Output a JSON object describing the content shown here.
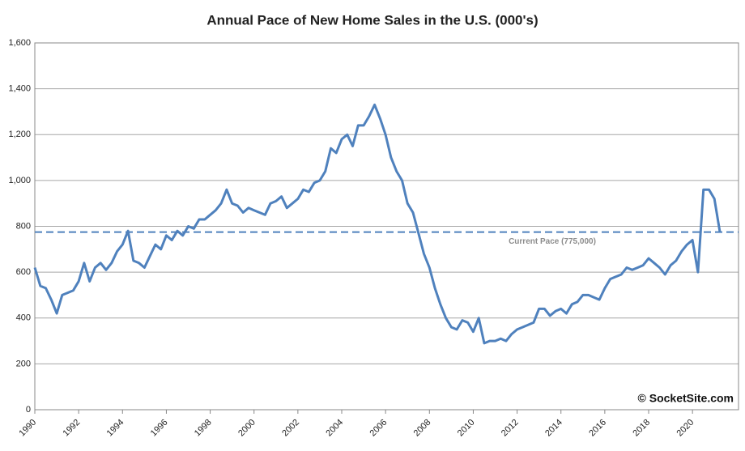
{
  "chart_data": {
    "type": "line",
    "title": "Annual Pace of New Home Sales in the U.S. (000's)",
    "watermark": "© SocketSite.com",
    "x": [
      1990,
      1990.25,
      1990.5,
      1990.75,
      1991,
      1991.25,
      1991.5,
      1991.75,
      1992,
      1992.25,
      1992.5,
      1992.75,
      1993,
      1993.25,
      1993.5,
      1993.75,
      1994,
      1994.25,
      1994.5,
      1994.75,
      1995,
      1995.25,
      1995.5,
      1995.75,
      1996,
      1996.25,
      1996.5,
      1996.75,
      1997,
      1997.25,
      1997.5,
      1997.75,
      1998,
      1998.25,
      1998.5,
      1998.75,
      1999,
      1999.25,
      1999.5,
      1999.75,
      2000,
      2000.25,
      2000.5,
      2000.75,
      2001,
      2001.25,
      2001.5,
      2001.75,
      2002,
      2002.25,
      2002.5,
      2002.75,
      2003,
      2003.25,
      2003.5,
      2003.75,
      2004,
      2004.25,
      2004.5,
      2004.75,
      2005,
      2005.25,
      2005.5,
      2005.75,
      2006,
      2006.25,
      2006.5,
      2006.75,
      2007,
      2007.25,
      2007.5,
      2007.75,
      2008,
      2008.25,
      2008.5,
      2008.75,
      2009,
      2009.25,
      2009.5,
      2009.75,
      2010,
      2010.25,
      2010.5,
      2010.75,
      2011,
      2011.25,
      2011.5,
      2011.75,
      2012,
      2012.25,
      2012.5,
      2012.75,
      2013,
      2013.25,
      2013.5,
      2013.75,
      2014,
      2014.25,
      2014.5,
      2014.75,
      2015,
      2015.25,
      2015.5,
      2015.75,
      2016,
      2016.25,
      2016.5,
      2016.75,
      2017,
      2017.25,
      2017.5,
      2017.75,
      2018,
      2018.25,
      2018.5,
      2018.75,
      2019,
      2019.25,
      2019.5,
      2019.75,
      2020,
      2020.25,
      2020.5,
      2020.75,
      2021,
      2021.25
    ],
    "series": [
      {
        "name": "New Home Sales",
        "color": "#4f81bd",
        "values": [
          620,
          540,
          530,
          480,
          420,
          500,
          510,
          520,
          560,
          640,
          560,
          620,
          640,
          610,
          640,
          690,
          720,
          780,
          650,
          640,
          620,
          670,
          720,
          700,
          760,
          740,
          780,
          760,
          800,
          790,
          830,
          830,
          850,
          870,
          900,
          960,
          900,
          890,
          860,
          880,
          870,
          860,
          850,
          900,
          910,
          930,
          880,
          900,
          920,
          960,
          950,
          990,
          1000,
          1040,
          1140,
          1120,
          1180,
          1200,
          1150,
          1240,
          1240,
          1280,
          1330,
          1270,
          1200,
          1100,
          1040,
          1000,
          900,
          860,
          770,
          680,
          620,
          530,
          460,
          400,
          360,
          350,
          390,
          380,
          340,
          400,
          290,
          300,
          300,
          310,
          300,
          330,
          350,
          360,
          370,
          380,
          440,
          440,
          410,
          430,
          440,
          420,
          460,
          470,
          500,
          500,
          490,
          480,
          530,
          570,
          580,
          590,
          620,
          610,
          620,
          630,
          660,
          640,
          620,
          590,
          630,
          650,
          690,
          720,
          740,
          600,
          960,
          960,
          920,
          775
        ]
      }
    ],
    "reference_line": {
      "value": 775,
      "label": "Current Pace (775,000)",
      "color": "#4f81bd"
    },
    "xlim": [
      1990,
      2022.1
    ],
    "xticks": [
      1990,
      1992,
      1994,
      1996,
      1998,
      2000,
      2002,
      2004,
      2006,
      2008,
      2010,
      2012,
      2014,
      2016,
      2018,
      2020
    ],
    "ylim": [
      0,
      1600
    ],
    "yticks": [
      0,
      200,
      400,
      600,
      800,
      {
        "value": 1000,
        "label": "1,000"
      },
      {
        "value": 1200,
        "label": "1,200"
      },
      {
        "value": 1400,
        "label": "1,400"
      },
      {
        "value": 1600,
        "label": "1,600"
      }
    ],
    "grid": true
  }
}
